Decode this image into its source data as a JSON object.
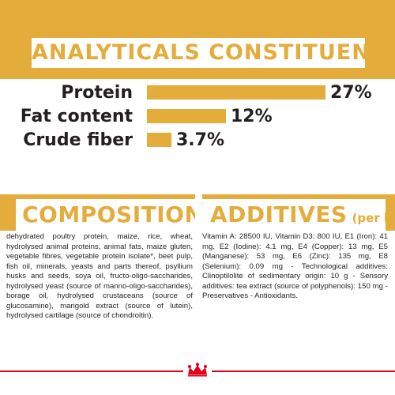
{
  "header": {
    "title": "ANALYTICALS CONSTITUENTS"
  },
  "chart_data": {
    "type": "bar",
    "orientation": "horizontal",
    "title": "ANALYTICALS CONSTITUENTS",
    "categories": [
      "Protein",
      "Fat content",
      "Crude fiber"
    ],
    "values": [
      27,
      12,
      3.7
    ],
    "value_labels": [
      "27%",
      "12%",
      "3.7%"
    ],
    "unit": "%",
    "xlim": [
      0,
      27
    ],
    "grid": false,
    "bar_color": "#e4ac3b"
  },
  "composition": {
    "title": "COMPOSITION",
    "text": "dehydrated poultry protein, maize, rice, wheat, hydrolysed animal proteins, animal fats, maize gluten, vegetable fibres, vegetable protein isolate*, beet pulp, fish oil, minerals, yeasts and parts thereof, psyllium husks and seeds, soya oil, fructo-oligo-saccharides, hydrolysed yeast (source of manno-oligo-saccharides), borage oil, hydrolysed crustaceans (source of glucosamine), marigold extract (source of lutein), hydrolysed cartilage (source of chondroitin)."
  },
  "additives": {
    "title": "ADDITIVES",
    "suffix": "(per kg)",
    "text": "Vitamin A: 28500 IU, Vitamin D3: 800 IU, E1 (Iron): 41 mg, E2 (Iodine): 4.1 mg, E4 (Copper): 13 mg, E5 (Manganese): 53 mg, E6 (Zinc): 135 mg, E8 (Selenium): 0.09 mg - Technological additives: Clinoptilolite of sedimentary origin: 10 g - Sensory additives: tea extract (source of polyphenols): 150 mg - Preservatives - Antioxidants."
  },
  "colors": {
    "accent": "#e4ac3b",
    "text": "#231f20",
    "brand_red": "#e2001a"
  },
  "footer": {
    "logo_icon": "royal-canin-crown-logo"
  }
}
